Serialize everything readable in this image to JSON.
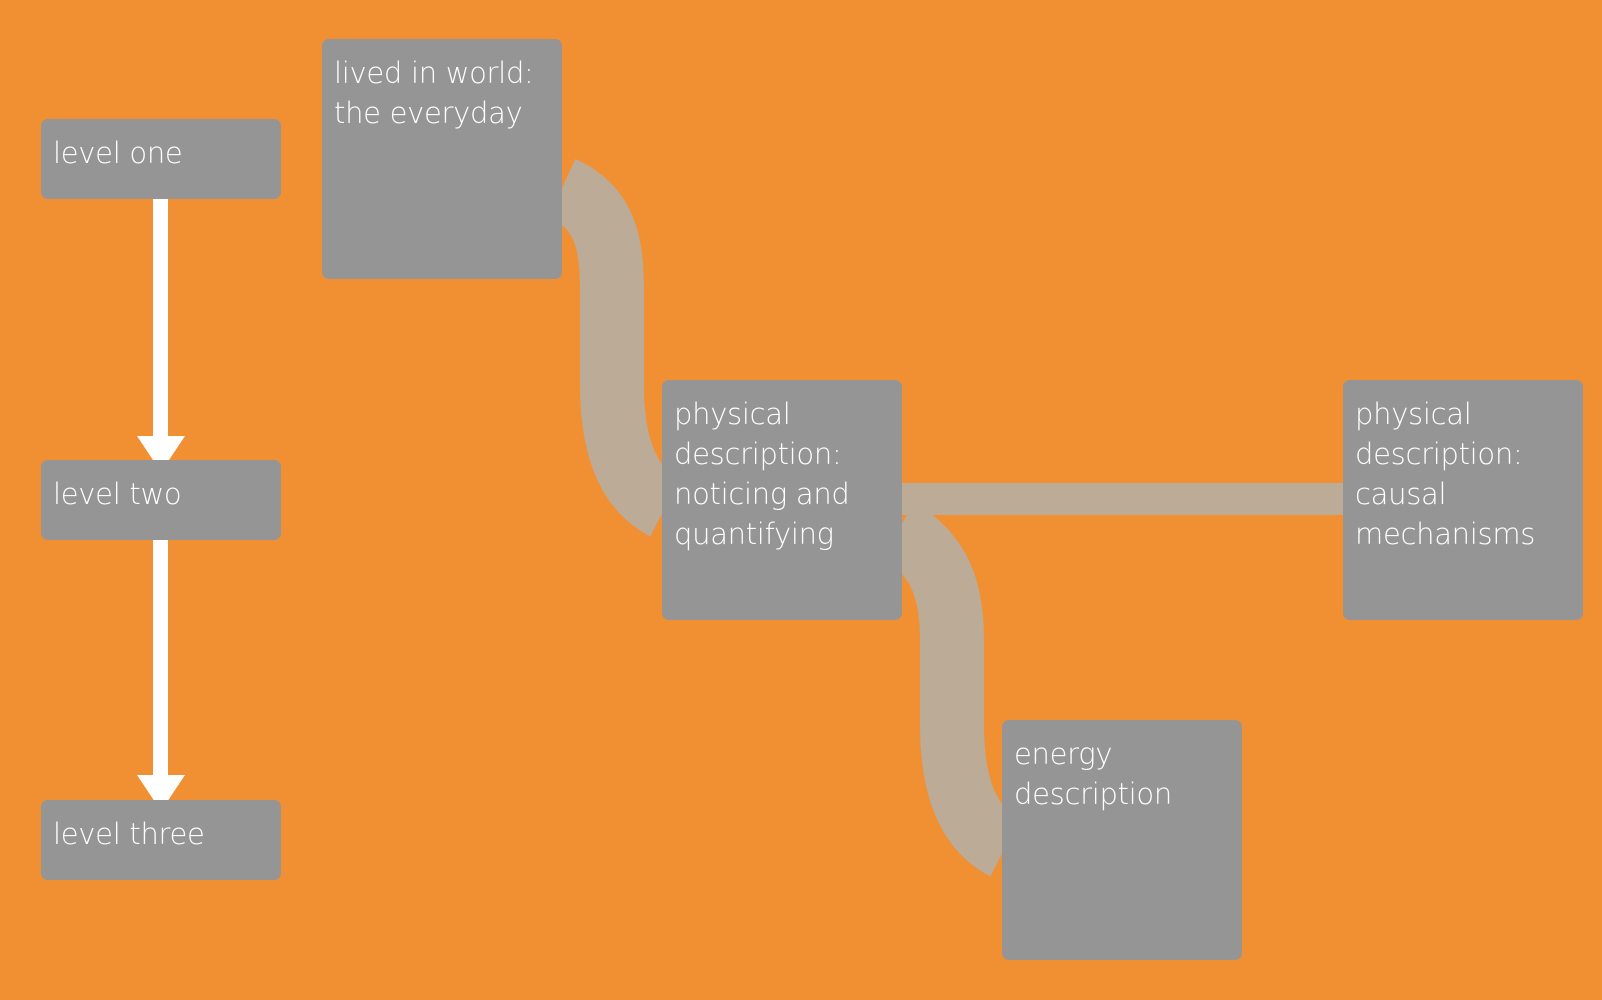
{
  "levels": {
    "one": "level one",
    "two": "level two",
    "three": "level three"
  },
  "nodes": {
    "lived": "lived in world:\nthe everyday",
    "noticing": "physical\ndescription:\nnoticing and\nquantifying",
    "causal": "physical\ndescription:\ncausal\nmechanisms",
    "energy": "energy\ndescription"
  },
  "colors": {
    "background": "#f18f33",
    "box": "#959595",
    "connector": "#bcab97",
    "arrow": "#ffffff"
  }
}
